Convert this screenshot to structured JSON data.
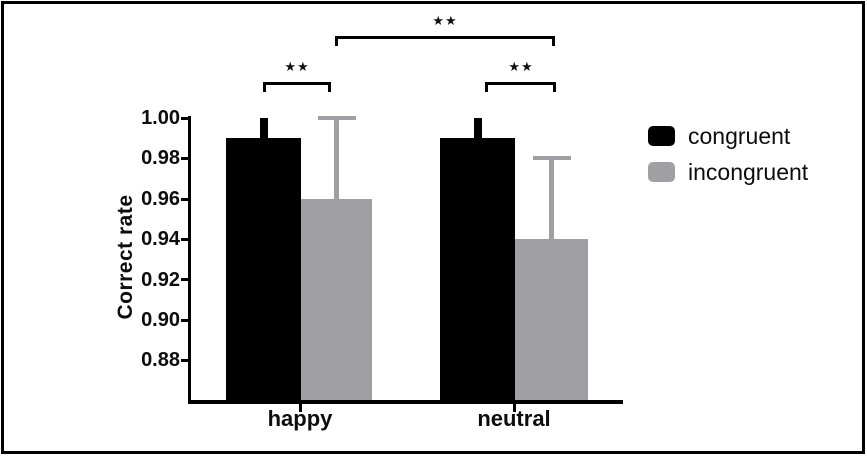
{
  "chart_data": {
    "type": "bar",
    "title": "",
    "xlabel": "",
    "ylabel": "Correct rate",
    "categories": [
      "happy",
      "neutral"
    ],
    "series": [
      {
        "name": "congruent",
        "color": "#000000",
        "values": [
          0.99,
          0.99
        ],
        "errors": [
          0.01,
          0.01
        ]
      },
      {
        "name": "incongruent",
        "color": "#a0a0a4",
        "values": [
          0.96,
          0.94
        ],
        "errors": [
          0.04,
          0.04
        ]
      }
    ],
    "ylim": [
      0.86,
      1.0
    ],
    "ytick_step": 0.02,
    "ytick_labels": [
      "1.00",
      "0.98",
      "0.96",
      "0.94",
      "0.92",
      "0.90",
      "0.88"
    ],
    "grid": false,
    "legend_position": "right-of-plot",
    "significance": [
      {
        "pair": [
          "happy congruent",
          "happy incongruent"
        ],
        "label": "★★"
      },
      {
        "pair": [
          "neutral congruent",
          "neutral incongruent"
        ],
        "label": "★★"
      },
      {
        "pair": [
          "happy incongruent",
          "neutral incongruent"
        ],
        "label": "★★"
      }
    ]
  }
}
